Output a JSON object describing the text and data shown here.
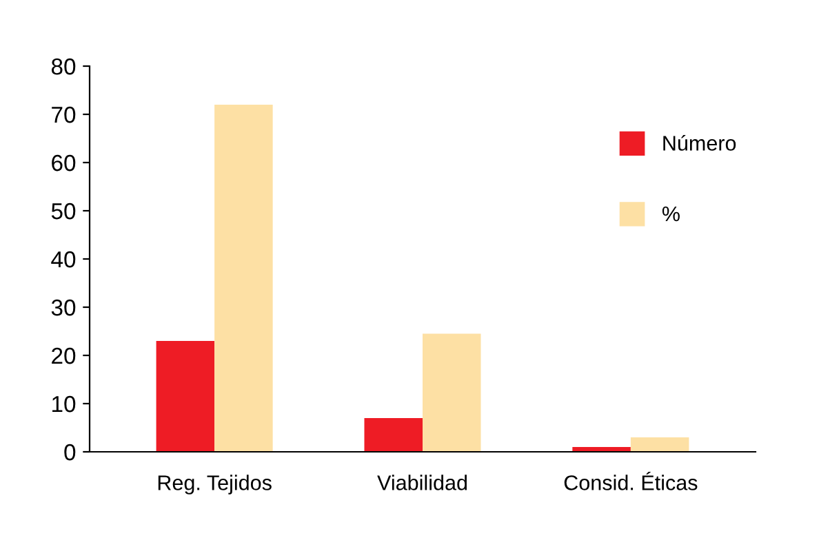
{
  "chart_data": {
    "type": "bar",
    "categories": [
      "Reg. Tejidos",
      "Viabilidad",
      "Consid. Éticas"
    ],
    "series": [
      {
        "name": "Número",
        "color": "#ee1c25",
        "values": [
          23,
          7,
          1
        ]
      },
      {
        "name": "%",
        "color": "#fde0a4",
        "values": [
          72,
          24.5,
          3
        ]
      }
    ],
    "ylim": [
      0,
      80
    ],
    "yticks": [
      0,
      10,
      20,
      30,
      40,
      50,
      60,
      70,
      80
    ],
    "grid": false,
    "legend": "top right"
  }
}
